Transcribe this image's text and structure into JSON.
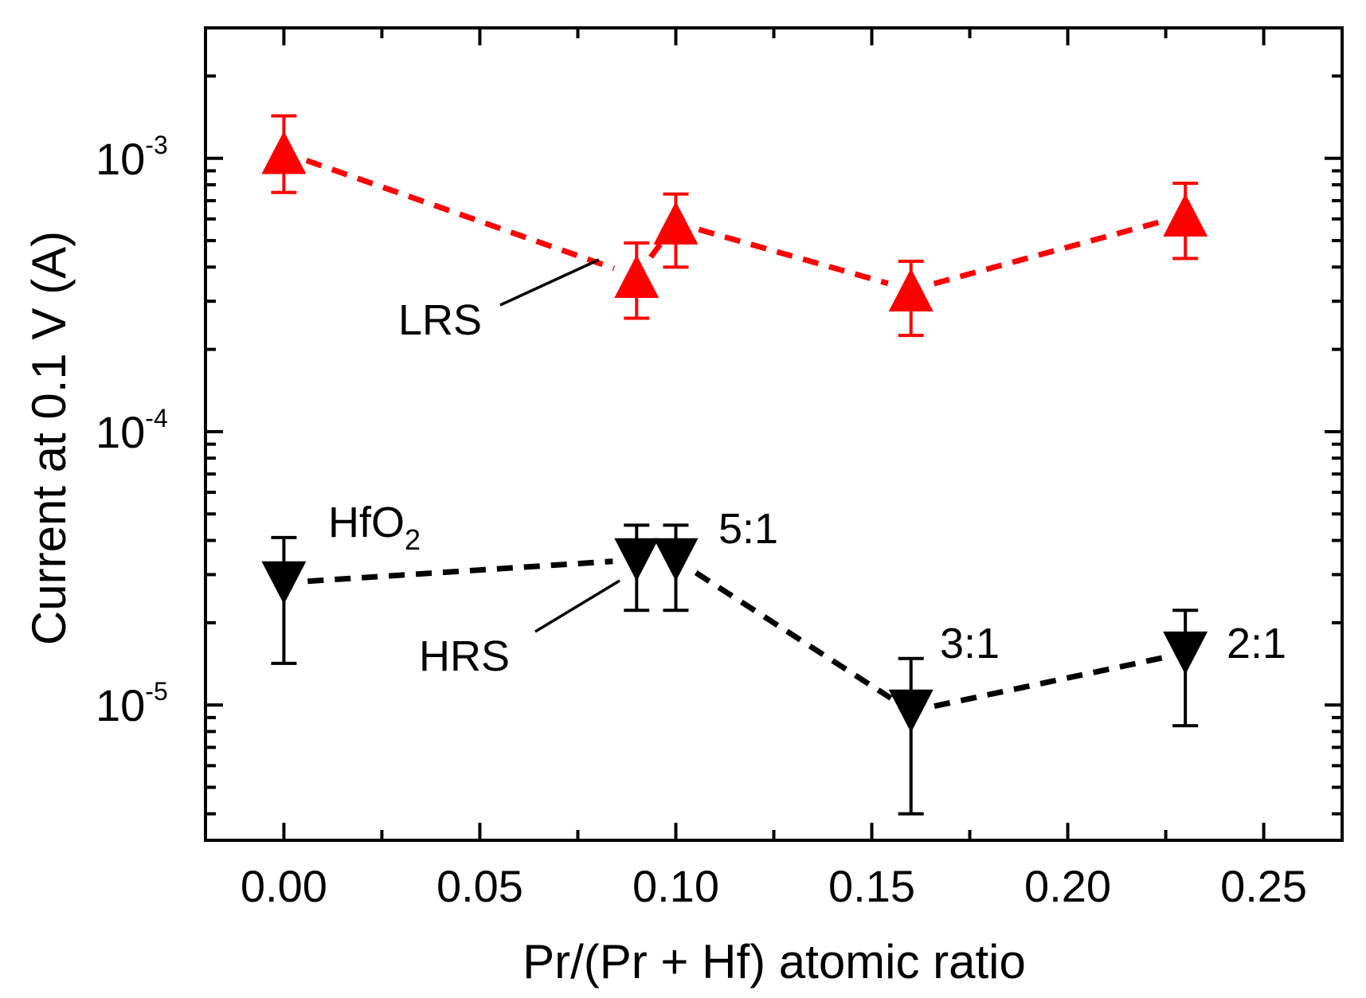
{
  "chart_data": {
    "type": "scatter",
    "xlabel": "Pr/(Pr + Hf) atomic ratio",
    "ylabel": "Current at 0.1 V (A)",
    "xlim": [
      -0.02,
      0.27
    ],
    "ylim": [
      3.2e-06,
      0.003
    ],
    "yscale": "log",
    "x_ticks": [
      0.0,
      0.05,
      0.1,
      0.15,
      0.2,
      0.25
    ],
    "x_tick_labels": [
      "0.00",
      "0.05",
      "0.10",
      "0.15",
      "0.20",
      "0.25"
    ],
    "y_tick_labels": [
      {
        "base": "10",
        "exp": "-3",
        "value": 0.001
      },
      {
        "base": "10",
        "exp": "-4",
        "value": 0.0001
      },
      {
        "base": "10",
        "exp": "-5",
        "value": 1e-05
      }
    ],
    "series": [
      {
        "name": "LRS",
        "color": "#ff0000",
        "marker": "triangle-up",
        "x": [
          0.0,
          0.09,
          0.1,
          0.16,
          0.23
        ],
        "y": [
          0.00105,
          0.00037,
          0.00058,
          0.00033,
          0.00062
        ],
        "err_low": [
          0.00075,
          0.00026,
          0.0004,
          0.000225,
          0.00043
        ],
        "err_high": [
          0.00143,
          0.00049,
          0.00074,
          0.00042,
          0.00081
        ]
      },
      {
        "name": "HRS",
        "color": "#000000",
        "marker": "triangle-down",
        "x": [
          0.0,
          0.09,
          0.1,
          0.16,
          0.23
        ],
        "y": [
          2.8e-05,
          3.4e-05,
          3.4e-05,
          9.5e-06,
          1.55e-05
        ],
        "err_low": [
          1.42e-05,
          2.22e-05,
          2.22e-05,
          4e-06,
          8.4e-06
        ],
        "err_high": [
          4.1e-05,
          4.55e-05,
          4.55e-05,
          1.48e-05,
          2.22e-05
        ]
      }
    ],
    "annotations": {
      "lrs_label": "LRS",
      "hrs_label": "HRS",
      "hfo2_base": "HfO",
      "hfo2_sub": "2",
      "ratio_5_1": "5:1",
      "ratio_3_1": "3:1",
      "ratio_2_1": "2:1"
    }
  }
}
